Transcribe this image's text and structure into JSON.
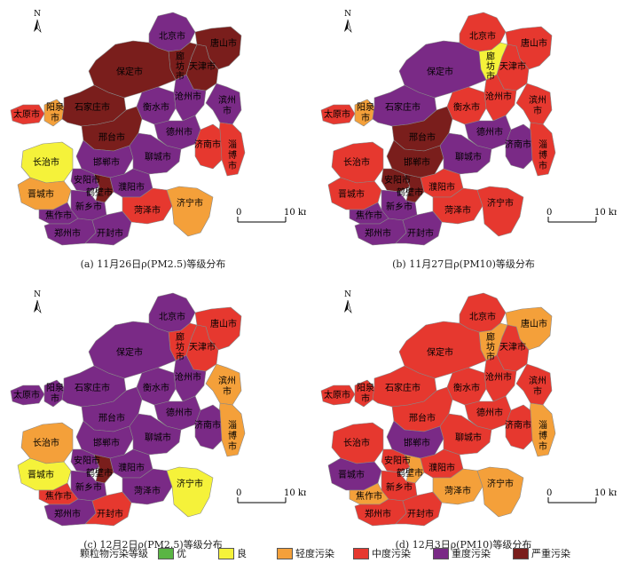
{
  "colors": {
    "excellent": "#5ab544",
    "good": "#f5f23a",
    "light": "#f4a03a",
    "moderate": "#e6382f",
    "heavy": "#7a2a86",
    "severe": "#7a1e1c"
  },
  "scale_bar": {
    "zero": "0",
    "dist": "10 km"
  },
  "north": "N",
  "panels": [
    {
      "caption": "(a)  11月26日ρ(PM2.5)等级分布",
      "cities": {
        "beijing": "heavy",
        "tangshan": "severe",
        "langfang": "severe",
        "tianjin": "severe",
        "baoding": "severe",
        "taiyuan": "moderate",
        "yangquan": "light",
        "shijiazhuang": "severe",
        "hengshui": "heavy",
        "cangzhou": "heavy",
        "binzhou": "heavy",
        "xingtai": "severe",
        "dezhou": "heavy",
        "zibo": "moderate",
        "jinan": "moderate",
        "changzhi": "good",
        "handan": "heavy",
        "liaocheng": "heavy",
        "anyang": "heavy",
        "hebi": "severe",
        "puyang": "heavy",
        "jincheng": "light",
        "xinxiang": "heavy",
        "heze": "moderate",
        "jining": "light",
        "jiaozuo": "heavy",
        "zhengzhou": "heavy",
        "kaifeng": "heavy"
      }
    },
    {
      "caption": "(b)  11月27日ρ(PM10)等级分布",
      "cities": {
        "beijing": "moderate",
        "tangshan": "moderate",
        "langfang": "good",
        "tianjin": "moderate",
        "baoding": "heavy",
        "taiyuan": "moderate",
        "yangquan": "light",
        "shijiazhuang": "heavy",
        "hengshui": "moderate",
        "cangzhou": "moderate",
        "binzhou": "moderate",
        "xingtai": "severe",
        "dezhou": "heavy",
        "zibo": "moderate",
        "jinan": "heavy",
        "changzhi": "moderate",
        "handan": "severe",
        "liaocheng": "heavy",
        "anyang": "severe",
        "hebi": "severe",
        "puyang": "moderate",
        "jincheng": "moderate",
        "xinxiang": "heavy",
        "heze": "moderate",
        "jining": "moderate",
        "jiaozuo": "heavy",
        "zhengzhou": "heavy",
        "kaifeng": "heavy"
      }
    },
    {
      "caption": "(c)  12月2日ρ(PM2.5)等级分布",
      "cities": {
        "beijing": "heavy",
        "tangshan": "moderate",
        "langfang": "moderate",
        "tianjin": "moderate",
        "baoding": "heavy",
        "taiyuan": "heavy",
        "yangquan": "heavy",
        "shijiazhuang": "heavy",
        "hengshui": "heavy",
        "cangzhou": "heavy",
        "binzhou": "light",
        "xingtai": "heavy",
        "dezhou": "heavy",
        "zibo": "light",
        "jinan": "heavy",
        "changzhi": "light",
        "handan": "heavy",
        "liaocheng": "heavy",
        "anyang": "heavy",
        "hebi": "severe",
        "puyang": "heavy",
        "jincheng": "good",
        "xinxiang": "heavy",
        "heze": "heavy",
        "jining": "good",
        "jiaozuo": "moderate",
        "zhengzhou": "heavy",
        "kaifeng": "moderate"
      }
    },
    {
      "caption": "(d)  12月3日ρ(PM10)等级分布",
      "cities": {
        "beijing": "moderate",
        "tangshan": "light",
        "langfang": "light",
        "tianjin": "moderate",
        "baoding": "moderate",
        "taiyuan": "moderate",
        "yangquan": "moderate",
        "shijiazhuang": "moderate",
        "hengshui": "moderate",
        "cangzhou": "moderate",
        "binzhou": "moderate",
        "xingtai": "moderate",
        "dezhou": "moderate",
        "zibo": "light",
        "jinan": "moderate",
        "changzhi": "moderate",
        "handan": "heavy",
        "liaocheng": "moderate",
        "anyang": "moderate",
        "hebi": "light",
        "puyang": "moderate",
        "jincheng": "heavy",
        "xinxiang": "moderate",
        "heze": "light",
        "jining": "light",
        "jiaozuo": "light",
        "zhengzhou": "moderate",
        "kaifeng": "moderate"
      }
    }
  ],
  "city_names": {
    "beijing": "北京市",
    "tangshan": "唐山市",
    "langfang_1": "廊",
    "langfang_2": "坊",
    "langfang_3": "市",
    "tianjin": "天津市",
    "baoding": "保定市",
    "taiyuan": "太原市",
    "yangquan_1": "阳泉",
    "yangquan_2": "市",
    "shijiazhuang": "石家庄市",
    "hengshui": "衡水市",
    "cangzhou": "沧州市",
    "binzhou_1": "滨州",
    "binzhou_2": "市",
    "xingtai": "邢台市",
    "dezhou": "德州市",
    "zibo_1": "淄",
    "zibo_2": "博",
    "zibo_3": "市",
    "jinan": "济南市",
    "changzhi": "长治市",
    "handan": "邯郸市",
    "liaocheng": "聊城市",
    "anyang": "安阳市",
    "hebi": "鹤壁市",
    "puyang": "濮阳市",
    "jincheng": "晋城市",
    "xinxiang": "新乡市",
    "heze": "菏泽市",
    "jining": "济宁市",
    "jiaozuo": "焦作市",
    "zhengzhou": "郑州市",
    "kaifeng": "开封市"
  },
  "legend": {
    "title": "颗粒物污染等级",
    "items": [
      {
        "key": "excellent",
        "label": "优"
      },
      {
        "key": "good",
        "label": "良"
      },
      {
        "key": "light",
        "label": "轻度污染"
      },
      {
        "key": "moderate",
        "label": "中度污染"
      },
      {
        "key": "heavy",
        "label": "重度污染"
      },
      {
        "key": "severe",
        "label": "严重污染"
      }
    ]
  }
}
